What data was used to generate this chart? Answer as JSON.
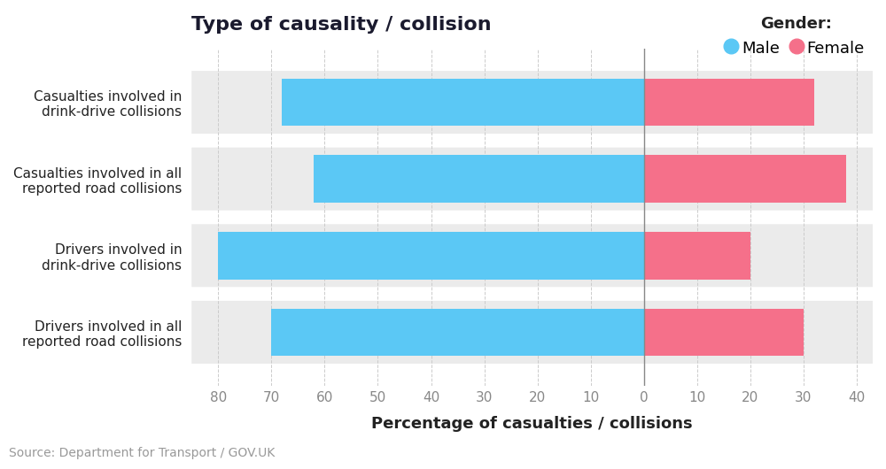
{
  "categories": [
    "Casualties involved in\ndrink-drive collisions",
    "Casualties involved in all\nreported road collisions",
    "Drivers involved in\ndrink-drive collisions",
    "Drivers involved in all\nreported road collisions"
  ],
  "male_values": [
    68,
    62,
    80,
    70
  ],
  "female_values": [
    32,
    38,
    20,
    30
  ],
  "male_color": "#5BC8F5",
  "female_color": "#F5708A",
  "background_color": "#FFFFFF",
  "bar_bg_color": "#EBEBEB",
  "title": "Type of causality / collision",
  "xlabel": "Percentage of casualties / collisions",
  "source": "Source: Department for Transport / GOV.UK",
  "legend_title": "Gender:",
  "legend_labels": [
    "Male",
    "Female"
  ],
  "xlim_left": -85,
  "xlim_right": 43,
  "title_fontsize": 16,
  "label_fontsize": 11,
  "tick_fontsize": 11,
  "source_fontsize": 10,
  "legend_fontsize": 13
}
